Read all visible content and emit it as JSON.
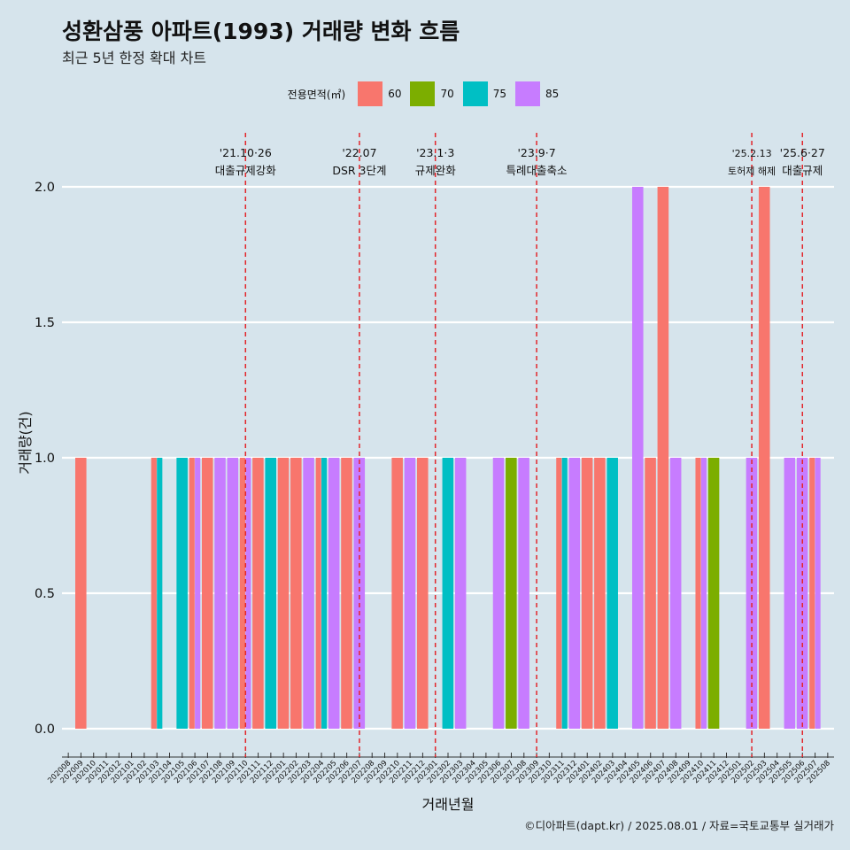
{
  "header": {
    "title": "성환삼풍 아파트(1993) 거래량 변화 흐름",
    "subtitle": "최근 5년 한정 확대 차트",
    "caption": "©디아파트(dapt.kr) / 2025.08.01 / 자료=국토교통부 실거래가"
  },
  "legend": {
    "title": "전용면적(㎡)",
    "items": [
      {
        "label": "60",
        "color": "#F8766D"
      },
      {
        "label": "70",
        "color": "#7CAE00"
      },
      {
        "label": "75",
        "color": "#00BFC4"
      },
      {
        "label": "85",
        "color": "#C77CFF"
      }
    ]
  },
  "chart_data": {
    "type": "bar",
    "xlabel": "거래년월",
    "ylabel": "거래량(건)",
    "ylim": [
      0,
      2
    ],
    "yticks": [
      "0.0",
      "0.5",
      "1.0",
      "1.5",
      "2.0"
    ],
    "grid": true,
    "legend_position": "top",
    "categories": [
      "202008",
      "202009",
      "202010",
      "202011",
      "202012",
      "202101",
      "202102",
      "202103",
      "202104",
      "202105",
      "202106",
      "202107",
      "202108",
      "202109",
      "202110",
      "202111",
      "202112",
      "202201",
      "202202",
      "202203",
      "202204",
      "202205",
      "202206",
      "202207",
      "202208",
      "202209",
      "202210",
      "202211",
      "202212",
      "202301",
      "202302",
      "202303",
      "202304",
      "202305",
      "202306",
      "202307",
      "202308",
      "202309",
      "202310",
      "202311",
      "202312",
      "202401",
      "202402",
      "202403",
      "202404",
      "202405",
      "202406",
      "202407",
      "202408",
      "202409",
      "202410",
      "202411",
      "202412",
      "202501",
      "202502",
      "202503",
      "202504",
      "202505",
      "202506",
      "202507",
      "202508"
    ],
    "series": [
      {
        "name": "60",
        "values": [
          0,
          1,
          0,
          0,
          0,
          0,
          0,
          1,
          0,
          0,
          1,
          1,
          0,
          0,
          1,
          1,
          0,
          1,
          1,
          0,
          1,
          0,
          1,
          0,
          0,
          0,
          1,
          0,
          1,
          0,
          0,
          0,
          0,
          0,
          0,
          0,
          0,
          0,
          0,
          1,
          0,
          1,
          1,
          0,
          0,
          0,
          1,
          2,
          0,
          0,
          1,
          0,
          0,
          0,
          0,
          2,
          0,
          0,
          0,
          1,
          0
        ]
      },
      {
        "name": "70",
        "values": [
          0,
          0,
          0,
          0,
          0,
          0,
          0,
          0,
          0,
          0,
          0,
          0,
          0,
          0,
          0,
          0,
          0,
          0,
          0,
          0,
          0,
          0,
          0,
          0,
          0,
          0,
          0,
          0,
          0,
          0,
          0,
          0,
          0,
          0,
          0,
          1,
          0,
          0,
          0,
          0,
          0,
          0,
          0,
          0,
          0,
          0,
          0,
          0,
          0,
          0,
          0,
          1,
          0,
          0,
          0,
          0,
          0,
          0,
          0,
          0,
          0
        ]
      },
      {
        "name": "75",
        "values": [
          0,
          0,
          0,
          0,
          0,
          0,
          0,
          1,
          0,
          1,
          0,
          0,
          0,
          0,
          0,
          0,
          1,
          0,
          0,
          0,
          1,
          0,
          0,
          0,
          0,
          0,
          0,
          0,
          0,
          0,
          1,
          0,
          0,
          0,
          0,
          0,
          0,
          0,
          0,
          1,
          0,
          0,
          0,
          1,
          0,
          0,
          0,
          0,
          0,
          0,
          0,
          0,
          0,
          0,
          0,
          0,
          0,
          0,
          0,
          0,
          0
        ]
      },
      {
        "name": "85",
        "values": [
          0,
          0,
          0,
          0,
          0,
          0,
          0,
          0,
          0,
          0,
          1,
          0,
          1,
          1,
          1,
          0,
          0,
          0,
          0,
          1,
          0,
          1,
          0,
          1,
          0,
          0,
          0,
          1,
          0,
          0,
          0,
          1,
          0,
          0,
          1,
          0,
          1,
          0,
          0,
          0,
          1,
          0,
          0,
          0,
          0,
          2,
          0,
          0,
          1,
          0,
          1,
          0,
          0,
          0,
          1,
          0,
          0,
          1,
          1,
          1,
          0
        ]
      }
    ],
    "annotations": [
      {
        "date": "2021-10-26",
        "at": "202110",
        "label_date": "'21.10·26",
        "label_text": "대출규제강화",
        "small": false
      },
      {
        "date": "2022-07",
        "at": "202207",
        "label_date": "'22.07",
        "label_text": "DSR 3단계",
        "small": false
      },
      {
        "date": "2023-01-03",
        "at": "202301",
        "label_date": "'23.1·3",
        "label_text": "규제완화",
        "small": false
      },
      {
        "date": "2023-09-07",
        "at": "202309",
        "label_date": "'23.9·7",
        "label_text": "특례대출축소",
        "small": false
      },
      {
        "date": "2025-02-13",
        "at": "202502",
        "label_date": "'25.2.13",
        "label_text": "토허제 해제",
        "small": true
      },
      {
        "date": "2025-06-27",
        "at": "202506",
        "label_date": "'25.6·27",
        "label_text": "대출규제",
        "small": false
      }
    ]
  }
}
